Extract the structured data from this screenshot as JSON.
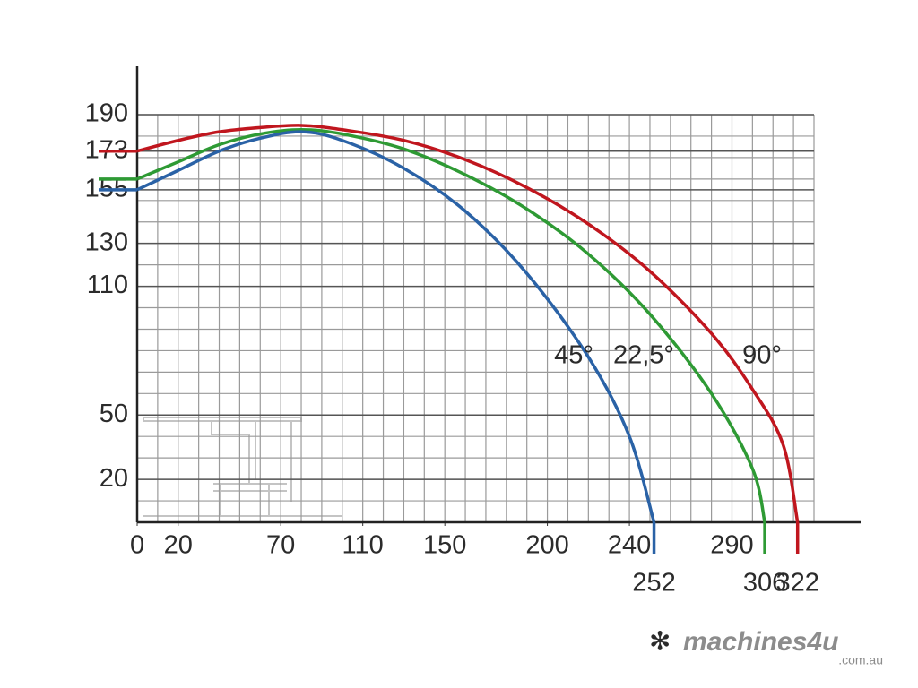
{
  "chart_data": {
    "type": "line",
    "series": [
      {
        "name": "90°",
        "color": "#c0161e",
        "x": [
          0,
          20,
          40,
          60,
          80,
          100,
          130,
          160,
          190,
          220,
          250,
          280,
          300,
          315,
          322
        ],
        "values": [
          173,
          178,
          182,
          184,
          185,
          183,
          178,
          169,
          156,
          139,
          117,
          88,
          62,
          36,
          0
        ]
      },
      {
        "name": "22,5°",
        "color": "#2e9a34",
        "x": [
          0,
          20,
          40,
          60,
          80,
          100,
          130,
          160,
          190,
          220,
          250,
          280,
          300,
          306
        ],
        "values": [
          160,
          168,
          176,
          181,
          183,
          181,
          174,
          162,
          146,
          125,
          97,
          60,
          25,
          0
        ]
      },
      {
        "name": "45°",
        "color": "#2a62a6",
        "x": [
          0,
          20,
          40,
          60,
          80,
          100,
          130,
          160,
          190,
          220,
          240,
          252
        ],
        "values": [
          155,
          164,
          173,
          179,
          182,
          178,
          165,
          145,
          116,
          77,
          40,
          0
        ]
      }
    ],
    "xlim": [
      0,
      330
    ],
    "ylim": [
      0,
      190
    ],
    "xticks": [
      0,
      20,
      70,
      110,
      150,
      200,
      240,
      290
    ],
    "yticks": [
      20,
      50,
      110,
      130,
      155,
      173,
      190
    ],
    "grid": true,
    "watermark": {
      "brand": "machines4u",
      "domain": ".com.au"
    }
  }
}
